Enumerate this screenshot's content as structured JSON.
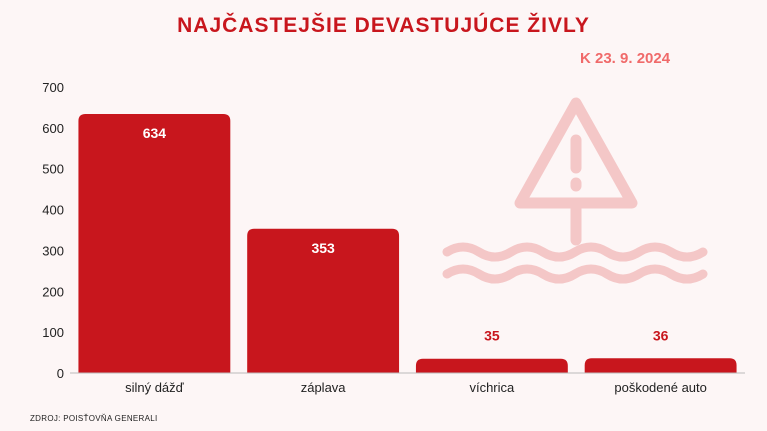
{
  "header": {
    "title": "NAJČASTEJŠIE DEVASTUJÚCE ŽIVLY",
    "date": "K 23. 9. 2024"
  },
  "footer": {
    "source": "ZDROJ:  POISŤOVŇA GENERALI"
  },
  "colors": {
    "bar": "#c8161d",
    "title": "#c8161d",
    "date": "#f06a6a",
    "decor": "#f4c7c7"
  },
  "icons": [
    "warning-triangle-icon",
    "waves-icon"
  ],
  "chart_data": {
    "type": "bar",
    "title": "NAJČASTEJŠIE DEVASTUJÚCE ŽIVLY",
    "categories": [
      "silný dážď",
      "záplava",
      "víchrica",
      "poškodené auto"
    ],
    "values": [
      634,
      353,
      35,
      36
    ],
    "xlabel": "",
    "ylabel": "",
    "ylim": [
      0,
      700
    ],
    "yticks": [
      0,
      100,
      200,
      300,
      400,
      500,
      600,
      700
    ],
    "grid": false,
    "legend": "none"
  }
}
